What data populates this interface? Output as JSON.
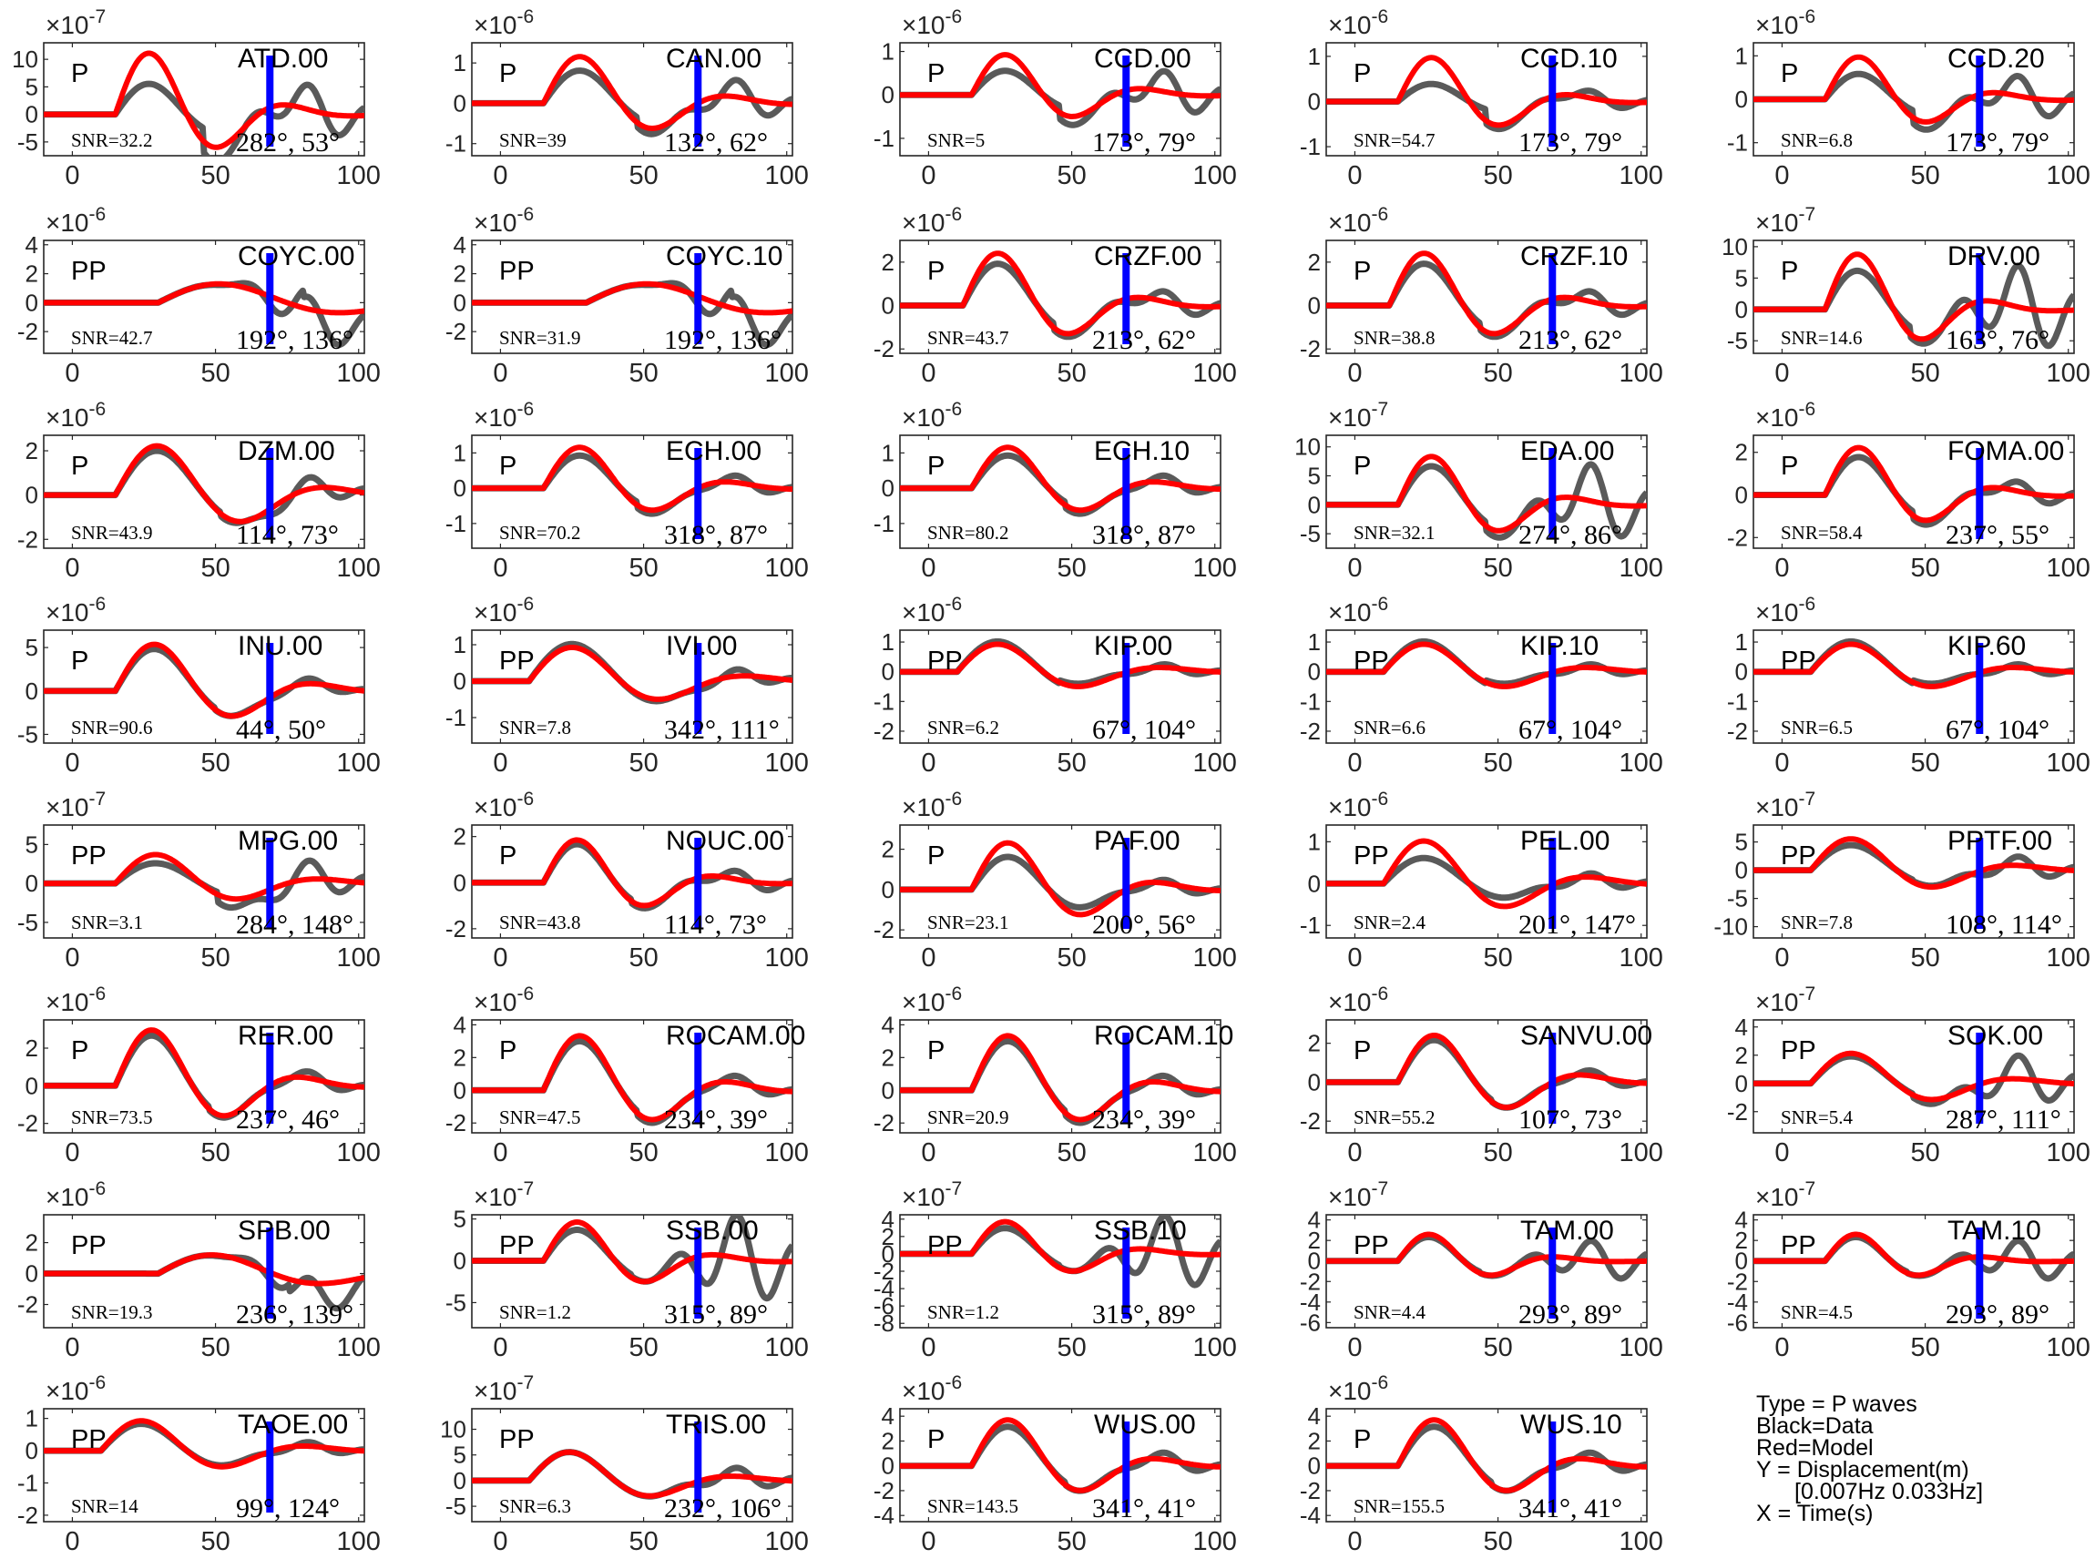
{
  "chart_data": {
    "type": "line",
    "xlim": [
      -10,
      102
    ],
    "xticks": [
      0,
      50,
      100
    ],
    "series_names": {
      "data": "Black=Data",
      "model": "Red=Model"
    },
    "colors": {
      "data": "#5a5a5a",
      "model": "#ff0000",
      "marker": "#0000ff"
    },
    "marker_time": 69,
    "panels": [
      {
        "station": "ATD.00",
        "phase": "P",
        "snr": "SNR=32.2",
        "az": "282°, 53°",
        "exp": "-7",
        "yticks": [
          -5,
          0,
          5,
          10
        ],
        "ylim": [
          -7.5,
          13
        ],
        "c": [
          15,
          40,
          6,
          12
        ],
        "dev": [
          0.5,
          1.4
        ],
        "tail": 1.0
      },
      {
        "station": "CAN.00",
        "phase": "P",
        "snr": "SNR=39",
        "az": "132°, 62°",
        "exp": "-6",
        "yticks": [
          -1,
          0,
          1
        ],
        "ylim": [
          -1.3,
          1.5
        ],
        "c": [
          15,
          42,
          6,
          1.25
        ],
        "dev": [
          0.7,
          1.2
        ],
        "tail": 0.9
      },
      {
        "station": "CCD.00",
        "phase": "P",
        "snr": "SNR=5",
        "az": "173°, 79°",
        "exp": "-6",
        "yticks": [
          -1,
          0,
          1
        ],
        "ylim": [
          -1.4,
          1.2
        ],
        "c": [
          15,
          40,
          6,
          1.0
        ],
        "dev": [
          0.6,
          1.35
        ],
        "tail": 1.3
      },
      {
        "station": "CCD.10",
        "phase": "P",
        "snr": "SNR=54.7",
        "az": "173°, 79°",
        "exp": "-6",
        "yticks": [
          -1,
          0,
          1
        ],
        "ylim": [
          -1.2,
          1.3
        ],
        "c": [
          15,
          40,
          6,
          1.05
        ],
        "dev": [
          0.4,
          1.15
        ],
        "tail": 0.4
      },
      {
        "station": "CCD.20",
        "phase": "P",
        "snr": "SNR=6.8",
        "az": "173°, 79°",
        "exp": "-6",
        "yticks": [
          -1,
          0,
          1
        ],
        "ylim": [
          -1.3,
          1.3
        ],
        "c": [
          15,
          40,
          6,
          1.05
        ],
        "dev": [
          0.6,
          1.3
        ],
        "tail": 1.2
      },
      {
        "station": "COYC.00",
        "phase": "PP",
        "snr": "SNR=42.7",
        "az": "192°, 136°",
        "exp": "-6",
        "yticks": [
          -2,
          0,
          2,
          4
        ],
        "ylim": [
          -3.5,
          4.3
        ],
        "c": [
          30,
          75,
          9,
          1.4
        ],
        "dev": [
          1.0,
          2.4
        ],
        "tail": 3.0
      },
      {
        "station": "COYC.10",
        "phase": "PP",
        "snr": "SNR=31.9",
        "az": "192°, 136°",
        "exp": "-6",
        "yticks": [
          -2,
          0,
          2,
          4
        ],
        "ylim": [
          -3.5,
          4.3
        ],
        "c": [
          30,
          75,
          9,
          1.4
        ],
        "dev": [
          1.0,
          2.4
        ],
        "tail": 3.0
      },
      {
        "station": "CRZF.00",
        "phase": "P",
        "snr": "SNR=43.7",
        "az": "213°, 62°",
        "exp": "-6",
        "yticks": [
          -2,
          0,
          2
        ],
        "ylim": [
          -2.2,
          3.0
        ],
        "c": [
          12,
          38,
          6,
          2.6
        ],
        "dev": [
          0.8,
          1.1
        ],
        "tail": 0.5
      },
      {
        "station": "CRZF.10",
        "phase": "P",
        "snr": "SNR=38.8",
        "az": "213°, 62°",
        "exp": "-6",
        "yticks": [
          -2,
          0,
          2
        ],
        "ylim": [
          -2.2,
          3.0
        ],
        "c": [
          12,
          38,
          6,
          2.6
        ],
        "dev": [
          0.8,
          1.1
        ],
        "tail": 0.5
      },
      {
        "station": "DRV.00",
        "phase": "P",
        "snr": "SNR=14.6",
        "az": "163°, 76°",
        "exp": "-7",
        "yticks": [
          -5,
          0,
          5,
          10
        ],
        "ylim": [
          -7,
          11
        ],
        "c": [
          15,
          39,
          6,
          9.5
        ],
        "dev": [
          0.7,
          1.1
        ],
        "tail": 2.0
      },
      {
        "station": "DZM.00",
        "phase": "P",
        "snr": "SNR=43.9",
        "az": "114°, 73°",
        "exp": "-6",
        "yticks": [
          -2,
          0,
          2
        ],
        "ylim": [
          -2.4,
          2.7
        ],
        "c": [
          15,
          46,
          7,
          2.4
        ],
        "dev": [
          0.9,
          1.1
        ],
        "tail": 0.6
      },
      {
        "station": "ECH.00",
        "phase": "P",
        "snr": "SNR=70.2",
        "az": "318°, 87°",
        "exp": "-6",
        "yticks": [
          -1,
          0,
          1
        ],
        "ylim": [
          -1.7,
          1.5
        ],
        "c": [
          15,
          42,
          6,
          1.25
        ],
        "dev": [
          0.8,
          1.15
        ],
        "tail": 0.4
      },
      {
        "station": "ECH.10",
        "phase": "P",
        "snr": "SNR=80.2",
        "az": "318°, 87°",
        "exp": "-6",
        "yticks": [
          -1,
          0,
          1
        ],
        "ylim": [
          -1.7,
          1.5
        ],
        "c": [
          15,
          42,
          6,
          1.25
        ],
        "dev": [
          0.8,
          1.15
        ],
        "tail": 0.4
      },
      {
        "station": "EDA.00",
        "phase": "P",
        "snr": "SNR=32.1",
        "az": "274°, 86°",
        "exp": "-7",
        "yticks": [
          -5,
          0,
          5,
          10
        ],
        "ylim": [
          -7.5,
          12
        ],
        "c": [
          15,
          40,
          6,
          9
        ],
        "dev": [
          0.8,
          1.2
        ],
        "tail": 2.0
      },
      {
        "station": "FOMA.00",
        "phase": "P",
        "snr": "SNR=58.4",
        "az": "237°, 55°",
        "exp": "-6",
        "yticks": [
          -2,
          0,
          2
        ],
        "ylim": [
          -2.5,
          2.8
        ],
        "c": [
          15,
          40,
          6,
          2.4
        ],
        "dev": [
          0.8,
          1.15
        ],
        "tail": 0.5
      },
      {
        "station": "INU.00",
        "phase": "P",
        "snr": "SNR=90.6",
        "az": "44°, 50°",
        "exp": "-6",
        "yticks": [
          -5,
          0,
          5
        ],
        "ylim": [
          -6,
          7
        ],
        "c": [
          15,
          44,
          6,
          5.8
        ],
        "dev": [
          0.9,
          1.0
        ],
        "tail": 0.3
      },
      {
        "station": "IVI.00",
        "phase": "PP",
        "snr": "SNR=7.8",
        "az": "342°, 111°",
        "exp": "-6",
        "yticks": [
          -1,
          0,
          1
        ],
        "ylim": [
          -1.7,
          1.4
        ],
        "c": [
          10,
          42,
          8,
          1.0
        ],
        "dev": [
          1.1,
          1.1
        ],
        "tail": 0.5
      },
      {
        "station": "KIP.00",
        "phase": "PP",
        "snr": "SNR=6.2",
        "az": "67°, 104°",
        "exp": "-6",
        "yticks": [
          -2,
          -1,
          0,
          1
        ],
        "ylim": [
          -2.4,
          1.4
        ],
        "c": [
          10,
          40,
          7,
          1.0
        ],
        "dev": [
          1.1,
          0.8
        ],
        "tail": 0.4
      },
      {
        "station": "KIP.10",
        "phase": "PP",
        "snr": "SNR=6.6",
        "az": "67°, 104°",
        "exp": "-6",
        "yticks": [
          -2,
          -1,
          0,
          1
        ],
        "ylim": [
          -2.4,
          1.4
        ],
        "c": [
          10,
          40,
          7,
          1.0
        ],
        "dev": [
          1.1,
          0.8
        ],
        "tail": 0.4
      },
      {
        "station": "KIP.60",
        "phase": "PP",
        "snr": "SNR=6.5",
        "az": "67°, 104°",
        "exp": "-6",
        "yticks": [
          -2,
          -1,
          0,
          1
        ],
        "ylim": [
          -2.4,
          1.4
        ],
        "c": [
          10,
          40,
          7,
          1.0
        ],
        "dev": [
          1.1,
          0.8
        ],
        "tail": 0.4
      },
      {
        "station": "MPG.00",
        "phase": "PP",
        "snr": "SNR=3.1",
        "az": "284°, 148°",
        "exp": "-7",
        "yticks": [
          -5,
          0,
          5
        ],
        "ylim": [
          -7,
          7.5
        ],
        "c": [
          15,
          45,
          7,
          4
        ],
        "dev": [
          0.7,
          1.6
        ],
        "tail": 1.5
      },
      {
        "station": "NOUC.00",
        "phase": "P",
        "snr": "SNR=43.8",
        "az": "114°, 73°",
        "exp": "-6",
        "yticks": [
          -2,
          0,
          2
        ],
        "ylim": [
          -2.4,
          2.5
        ],
        "c": [
          15,
          40,
          6,
          2.0
        ],
        "dev": [
          0.9,
          1.1
        ],
        "tail": 0.5
      },
      {
        "station": "PAF.00",
        "phase": "P",
        "snr": "SNR=23.1",
        "az": "200°, 56°",
        "exp": "-6",
        "yticks": [
          -2,
          0,
          2
        ],
        "ylim": [
          -2.4,
          3.2
        ],
        "c": [
          15,
          42,
          6,
          2.5
        ],
        "dev": [
          0.7,
          0.7
        ],
        "tail": 0.3
      },
      {
        "station": "PEL.00",
        "phase": "PP",
        "snr": "SNR=2.4",
        "az": "201°, 147°",
        "exp": "-6",
        "yticks": [
          -1,
          0,
          1
        ],
        "ylim": [
          -1.3,
          1.4
        ],
        "c": [
          10,
          40,
          7,
          1.1
        ],
        "dev": [
          0.6,
          0.6
        ],
        "tail": 0.4
      },
      {
        "station": "PPTF.00",
        "phase": "PP",
        "snr": "SNR=7.8",
        "az": "108°, 114°",
        "exp": "-7",
        "yticks": [
          -10,
          -5,
          0,
          5
        ],
        "ylim": [
          -12,
          8
        ],
        "c": [
          10,
          40,
          7,
          6
        ],
        "dev": [
          0.8,
          0.9
        ],
        "tail": 0.8
      },
      {
        "station": "RER.00",
        "phase": "P",
        "snr": "SNR=73.5",
        "az": "237°, 46°",
        "exp": "-6",
        "yticks": [
          -2,
          0,
          2
        ],
        "ylim": [
          -2.5,
          3.5
        ],
        "c": [
          15,
          42,
          6,
          3.2
        ],
        "dev": [
          0.9,
          1.05
        ],
        "tail": 0.3
      },
      {
        "station": "ROCAM.00",
        "phase": "P",
        "snr": "SNR=47.5",
        "az": "234°, 39°",
        "exp": "-6",
        "yticks": [
          -2,
          0,
          2,
          4
        ],
        "ylim": [
          -2.6,
          4.3
        ],
        "c": [
          15,
          42,
          6,
          3.6
        ],
        "dev": [
          0.9,
          1.1
        ],
        "tail": 0.3
      },
      {
        "station": "ROCAM.10",
        "phase": "P",
        "snr": "SNR=20.9",
        "az": "234°, 39°",
        "exp": "-6",
        "yticks": [
          -2,
          0,
          2,
          4
        ],
        "ylim": [
          -2.6,
          4.3
        ],
        "c": [
          15,
          42,
          6,
          3.6
        ],
        "dev": [
          0.9,
          1.1
        ],
        "tail": 0.3
      },
      {
        "station": "SANVU.00",
        "phase": "P",
        "snr": "SNR=55.2",
        "az": "107°, 73°",
        "exp": "-6",
        "yticks": [
          -2,
          0,
          2
        ],
        "ylim": [
          -2.6,
          3.2
        ],
        "c": [
          15,
          42,
          6,
          2.6
        ],
        "dev": [
          0.9,
          1.0
        ],
        "tail": 0.3
      },
      {
        "station": "SOK.00",
        "phase": "PP",
        "snr": "SNR=5.4",
        "az": "287°, 111°",
        "exp": "-7",
        "yticks": [
          -2,
          0,
          2,
          4
        ],
        "ylim": [
          -3.5,
          4.5
        ],
        "c": [
          10,
          40,
          7,
          2.3
        ],
        "dev": [
          0.9,
          1.2
        ],
        "tail": 2.0
      },
      {
        "station": "SPB.00",
        "phase": "PP",
        "snr": "SNR=19.3",
        "az": "236°, 139°",
        "exp": "-6",
        "yticks": [
          -2,
          0,
          2
        ],
        "ylim": [
          -3.5,
          3.8
        ],
        "c": [
          30,
          70,
          9,
          1.3
        ],
        "dev": [
          1.0,
          2.3
        ],
        "tail": 2.5
      },
      {
        "station": "SSB.00",
        "phase": "PP",
        "snr": "SNR=1.2",
        "az": "315°, 89°",
        "exp": "-7",
        "yticks": [
          -5,
          0,
          5
        ],
        "ylim": [
          -8,
          5.5
        ],
        "c": [
          15,
          40,
          7,
          5
        ],
        "dev": [
          0.8,
          0.9
        ],
        "tail": 3.0
      },
      {
        "station": "SSB.10",
        "phase": "PP",
        "snr": "SNR=1.2",
        "az": "315°, 89°",
        "exp": "-7",
        "yticks": [
          -8,
          -6,
          -4,
          -2,
          0,
          2,
          4
        ],
        "ylim": [
          -8.5,
          4.5
        ],
        "c": [
          15,
          40,
          7,
          4
        ],
        "dev": [
          0.8,
          0.9
        ],
        "tail": 3.0
      },
      {
        "station": "TAM.00",
        "phase": "PP",
        "snr": "SNR=4.4",
        "az": "293°, 89°",
        "exp": "-7",
        "yticks": [
          -6,
          -4,
          -2,
          0,
          2,
          4
        ],
        "ylim": [
          -6.5,
          4.5
        ],
        "c": [
          15,
          38,
          7,
          2.8
        ],
        "dev": [
          0.9,
          1.0
        ],
        "tail": 2.0
      },
      {
        "station": "TAM.10",
        "phase": "PP",
        "snr": "SNR=4.5",
        "az": "293°, 89°",
        "exp": "-7",
        "yticks": [
          -6,
          -4,
          -2,
          0,
          2,
          4
        ],
        "ylim": [
          -6.5,
          4.5
        ],
        "c": [
          15,
          38,
          7,
          2.8
        ],
        "dev": [
          0.9,
          1.0
        ],
        "tail": 2.0
      },
      {
        "station": "TAOE.00",
        "phase": "PP",
        "snr": "SNR=14",
        "az": "99°, 124°",
        "exp": "-6",
        "yticks": [
          -2,
          -1,
          0,
          1
        ],
        "ylim": [
          -2.2,
          1.3
        ],
        "c": [
          10,
          40,
          7,
          1.0
        ],
        "dev": [
          0.9,
          0.9
        ],
        "tail": 0.4
      },
      {
        "station": "TRIS.00",
        "phase": "PP",
        "snr": "SNR=6.3",
        "az": "232°, 106°",
        "exp": "-7",
        "yticks": [
          -5,
          0,
          5,
          10
        ],
        "ylim": [
          -8,
          14
        ],
        "c": [
          10,
          40,
          7,
          6
        ],
        "dev": [
          1.0,
          1.0
        ],
        "tail": 0.8
      },
      {
        "station": "WUS.00",
        "phase": "P",
        "snr": "SNR=143.5",
        "az": "341°, 41°",
        "exp": "-6",
        "yticks": [
          -4,
          -2,
          0,
          2,
          4
        ],
        "ylim": [
          -4.5,
          4.6
        ],
        "c": [
          15,
          42,
          6,
          4.0
        ],
        "dev": [
          0.85,
          1.0
        ],
        "tail": 0.4
      },
      {
        "station": "WUS.10",
        "phase": "P",
        "snr": "SNR=155.5",
        "az": "341°, 41°",
        "exp": "-6",
        "yticks": [
          -4,
          -2,
          0,
          2,
          4
        ],
        "ylim": [
          -4.5,
          4.6
        ],
        "c": [
          15,
          42,
          6,
          4.0
        ],
        "dev": [
          0.85,
          1.0
        ],
        "tail": 0.4
      }
    ]
  },
  "legend": {
    "type": "Type = P waves",
    "black": "Black=Data",
    "red": "Red=Model",
    "y": "Y = Displacement(m)",
    "band": "[0.007Hz 0.033Hz]",
    "x": "X = Time(s)"
  }
}
